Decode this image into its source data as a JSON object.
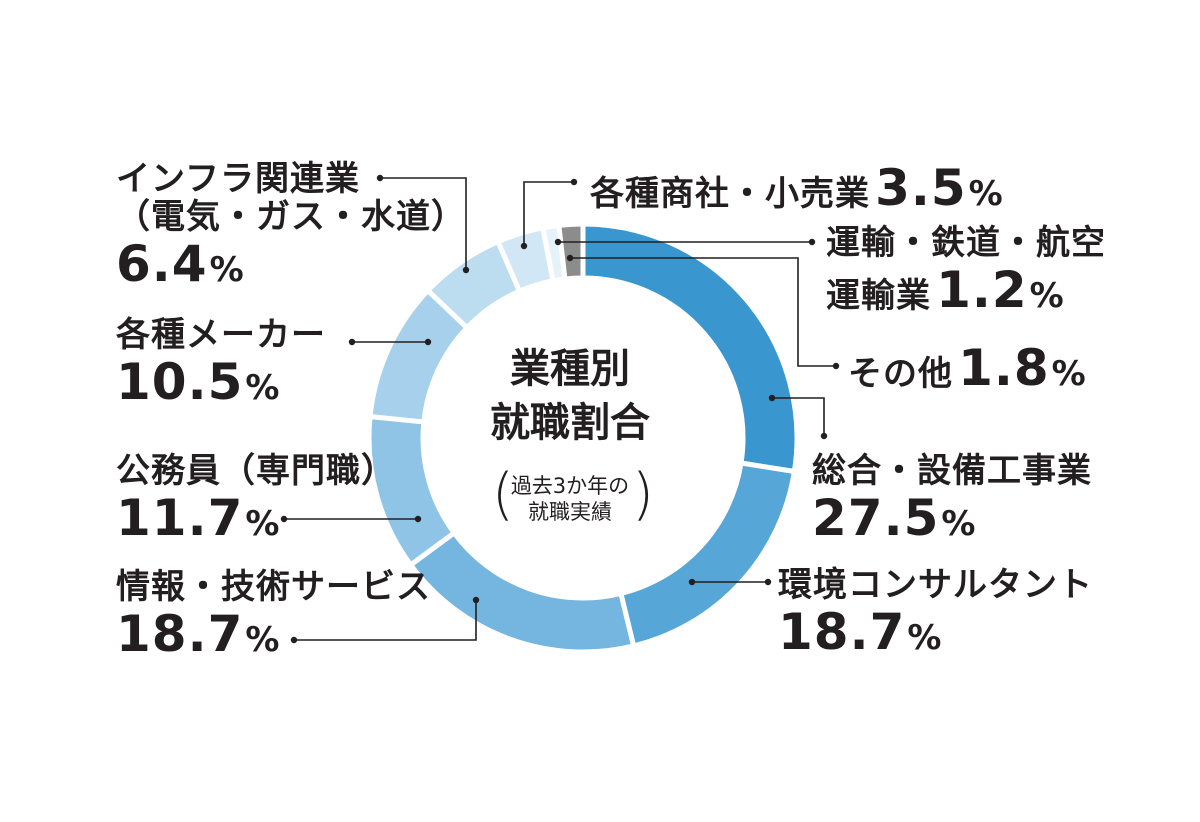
{
  "chart_data": {
    "type": "donut",
    "title_line1": "業種別",
    "title_line2": "就職割合",
    "subtitle_line1": "過去3か年の",
    "subtitle_line2": "就職実績",
    "unit": "%",
    "slices": [
      {
        "name": "総合・設備工事業",
        "value": 27.5,
        "color": "#3a96cf"
      },
      {
        "name": "環境コンサルタント",
        "value": 18.7,
        "color": "#56a6d8"
      },
      {
        "name": "情報・技術サービス",
        "value": 18.7,
        "color": "#74b6e0"
      },
      {
        "name": "公務員（専門職）",
        "value": 11.7,
        "color": "#8fc4e6"
      },
      {
        "name": "各種メーカー",
        "value": 10.5,
        "color": "#a6d0eb"
      },
      {
        "name": "インフラ関連業（電気・ガス・水道）",
        "name_line1": "インフラ関連業",
        "name_line2": "（電気・ガス・水道）",
        "value": 6.4,
        "color": "#bcdcf0"
      },
      {
        "name": "各種商社・小売業",
        "value": 3.5,
        "color": "#d2e7f5"
      },
      {
        "name": "運輸・鉄道・航空運輸業",
        "name_line1": "運輸・鉄道・航空",
        "name_line2": "運輸業",
        "value": 1.2,
        "color": "#e6f2fa"
      },
      {
        "name": "その他",
        "value": 1.8,
        "color": "#8c8c8c"
      }
    ]
  }
}
